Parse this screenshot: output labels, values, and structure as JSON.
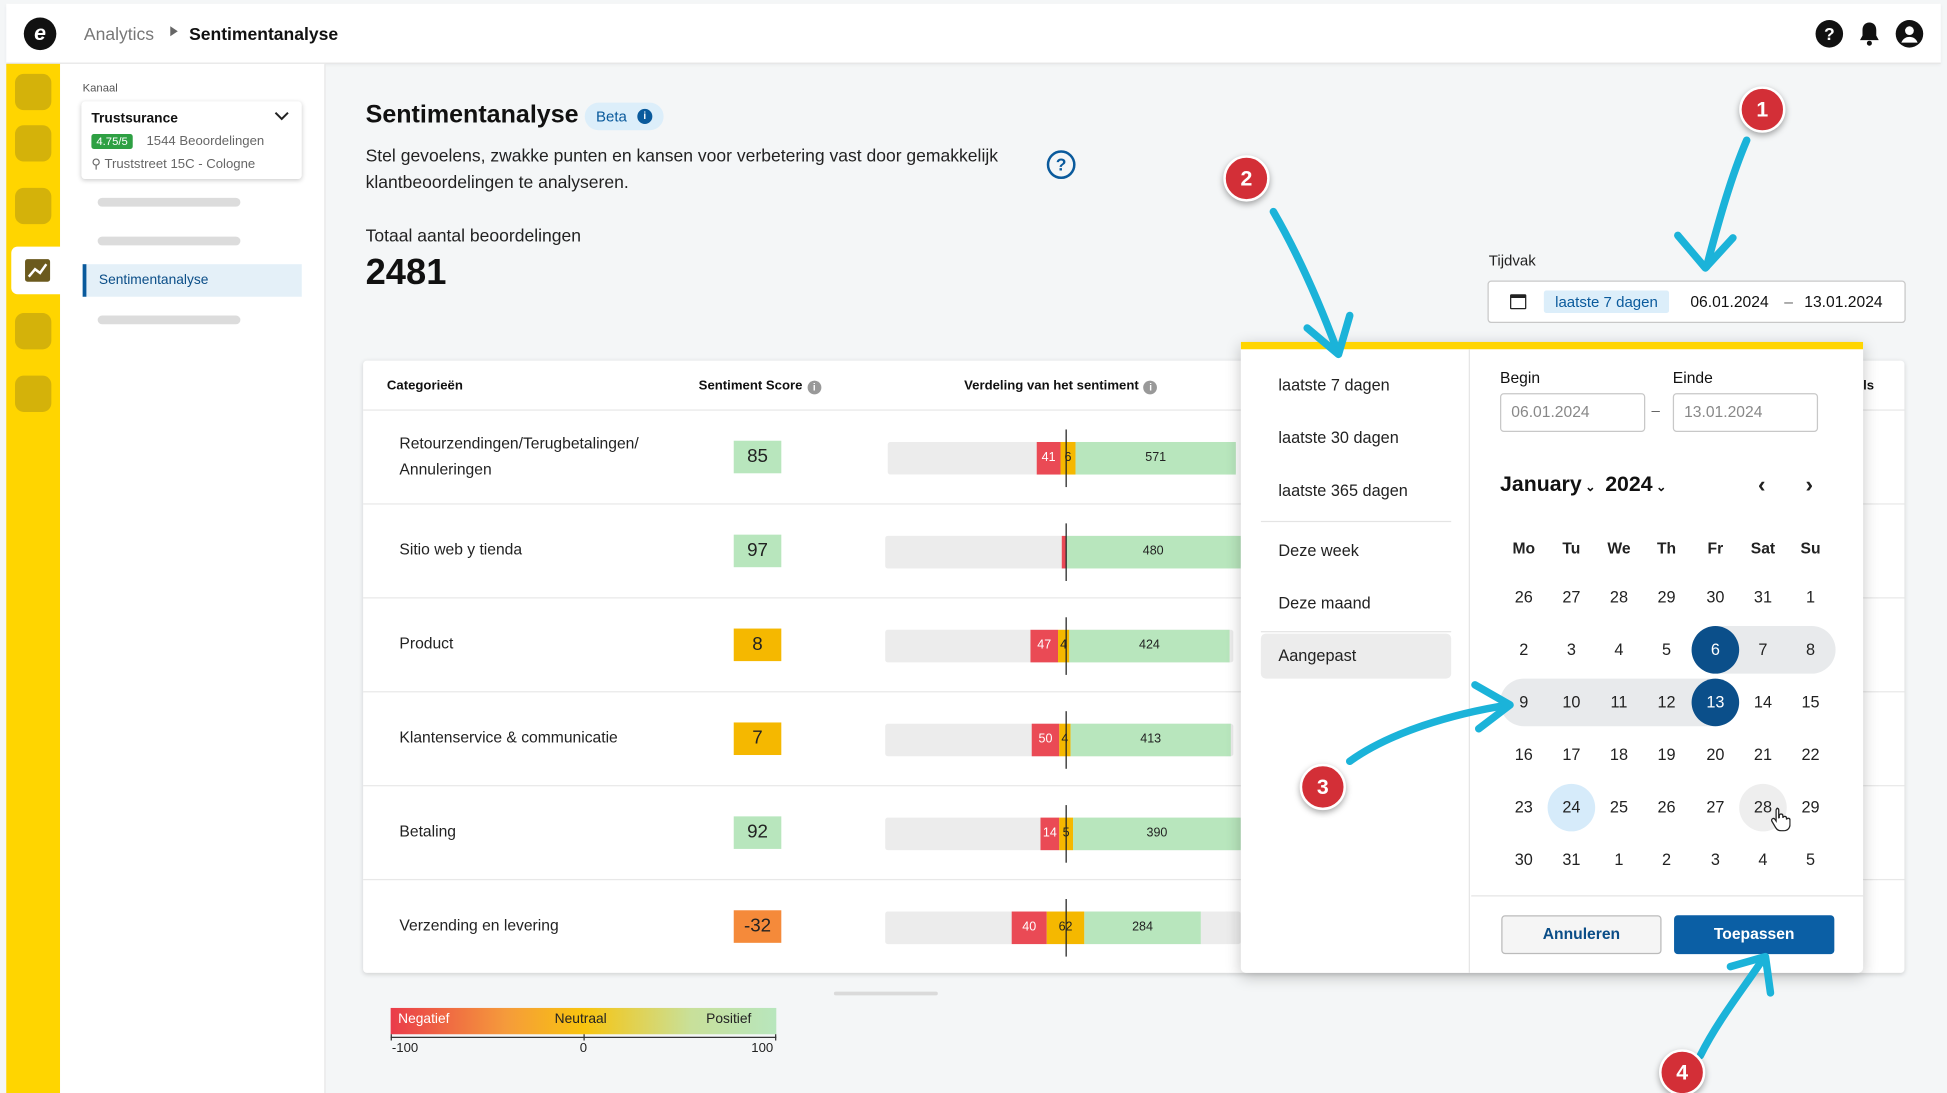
{
  "topbar": {
    "logo_letter": "e",
    "breadcrumb_parent": "Analytics",
    "breadcrumb_current": "Sentimentanalyse",
    "icons": [
      "help-icon",
      "bell-icon",
      "user-icon"
    ]
  },
  "sidebar": {
    "channel_label": "Kanaal",
    "channel": {
      "name": "Trustsurance",
      "rating": "4.75/5",
      "reviews": "1544 Beoordelingen",
      "address": "Truststreet 15C - Cologne"
    },
    "active_item": "Sentimentanalyse"
  },
  "page": {
    "title": "Sentimentanalyse",
    "badge": "Beta",
    "description": "Stel gevoelens, zwakke punten en kansen voor verbetering vast door gemakkelijk klantbeoordelingen te analyseren.",
    "total_label": "Totaal aantal beoordelingen",
    "total_value": "2481"
  },
  "period": {
    "label": "Tijdvak",
    "preset_chip": "laatste 7 dagen",
    "start": "06.01.2024",
    "dash": "–",
    "end": "13.01.2024"
  },
  "table": {
    "headers": {
      "category": "Categorieën",
      "score": "Sentiment Score",
      "distribution": "Verdeling van het sentiment",
      "cut_off": "ls"
    },
    "rows": [
      {
        "name": "Retourzendingen/Terugbetalingen/ Annuleringen",
        "score": "85",
        "neg": "41",
        "neu": "6",
        "pos": "571"
      },
      {
        "name": "Sitio web y tienda",
        "score": "97",
        "neg": "",
        "neu": "",
        "pos": "480"
      },
      {
        "name": "Product",
        "score": "8",
        "neg": "47",
        "neu": "4",
        "pos": "424"
      },
      {
        "name": "Klantenservice & communicatie",
        "score": "7",
        "neg": "50",
        "neu": "4",
        "pos": "413"
      },
      {
        "name": "Betaling",
        "score": "92",
        "neg": "14",
        "neu": "5",
        "pos": "390"
      },
      {
        "name": "Verzending en levering",
        "score": "-32",
        "neg": "40",
        "neu": "62",
        "pos": "284"
      }
    ]
  },
  "legend": {
    "negative": "Negatief",
    "neutral": "Neutraal",
    "positive": "Positief",
    "min": "-100",
    "mid": "0",
    "max": "100"
  },
  "datepicker": {
    "presets": [
      "laatste 7 dagen",
      "laatste 30 dagen",
      "laatste 365 dagen",
      "Deze week",
      "Deze maand",
      "Aangepast"
    ],
    "active_preset": "Aangepast",
    "begin_label": "Begin",
    "end_label": "Einde",
    "begin_value": "06.01.2024",
    "end_value": "13.01.2024",
    "month": "January",
    "year": "2024",
    "weekdays": [
      "Mo",
      "Tu",
      "We",
      "Th",
      "Fr",
      "Sat",
      "Su"
    ],
    "weeks": [
      [
        "26",
        "27",
        "28",
        "29",
        "30",
        "31",
        "1"
      ],
      [
        "2",
        "3",
        "4",
        "5",
        "6",
        "7",
        "8"
      ],
      [
        "9",
        "10",
        "11",
        "12",
        "13",
        "14",
        "15"
      ],
      [
        "16",
        "17",
        "18",
        "19",
        "20",
        "21",
        "22"
      ],
      [
        "23",
        "24",
        "25",
        "26",
        "27",
        "28",
        "29"
      ],
      [
        "30",
        "31",
        "1",
        "2",
        "3",
        "4",
        "5"
      ]
    ],
    "cancel": "Annuleren",
    "apply": "Toepassen"
  },
  "annotations": [
    "1",
    "2",
    "3",
    "4"
  ],
  "colors": {
    "brand_yellow": "#ffd500",
    "primary_blue": "#0b5fa5",
    "negative": "#ea4a55",
    "neutral": "#f5b800",
    "positive": "#b8e6bd",
    "marker_red": "#d32f37",
    "arrow_cyan": "#1bb3d9"
  }
}
